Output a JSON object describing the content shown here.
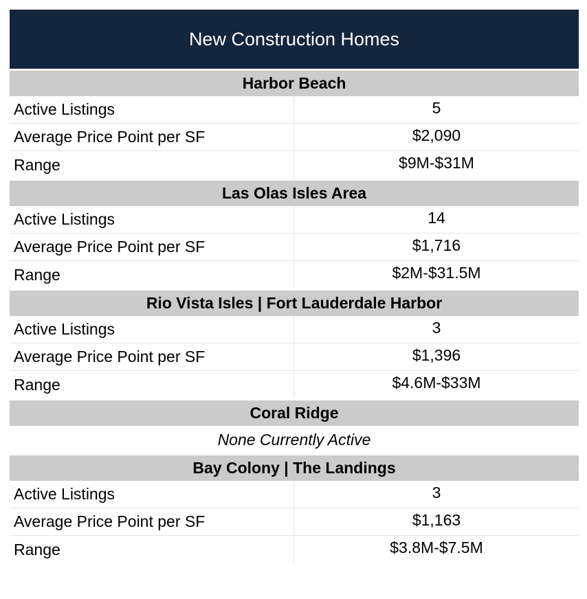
{
  "title": "New Construction Homes",
  "colors": {
    "title_bg": "#14253e",
    "title_text": "#ffffff",
    "section_bg": "#cbcbcb"
  },
  "sections": [
    {
      "name": "Harbor Beach",
      "rows": [
        {
          "label": "Active Listings",
          "value": "5"
        },
        {
          "label": "Average Price Point per SF",
          "value": "$2,090"
        },
        {
          "label": "Range",
          "value": "$9M-$31M"
        }
      ]
    },
    {
      "name": "Las Olas Isles Area",
      "rows": [
        {
          "label": "Active Listings",
          "value": "14"
        },
        {
          "label": "Average Price Point per SF",
          "value": "$1,716"
        },
        {
          "label": "Range",
          "value": "$2M-$31.5M"
        }
      ]
    },
    {
      "name": "Rio Vista Isles | Fort Lauderdale Harbor",
      "rows": [
        {
          "label": "Active Listings",
          "value": "3"
        },
        {
          "label": "Average Price Point per SF",
          "value": "$1,396"
        },
        {
          "label": "Range",
          "value": "$4.6M-$33M"
        }
      ]
    },
    {
      "name": "Coral Ridge",
      "note": "None Currently Active"
    },
    {
      "name": "Bay Colony | The Landings",
      "rows": [
        {
          "label": "Active Listings",
          "value": "3"
        },
        {
          "label": "Average Price Point per SF",
          "value": "$1,163"
        },
        {
          "label": "Range",
          "value": "$3.8M-$7.5M"
        }
      ]
    }
  ]
}
